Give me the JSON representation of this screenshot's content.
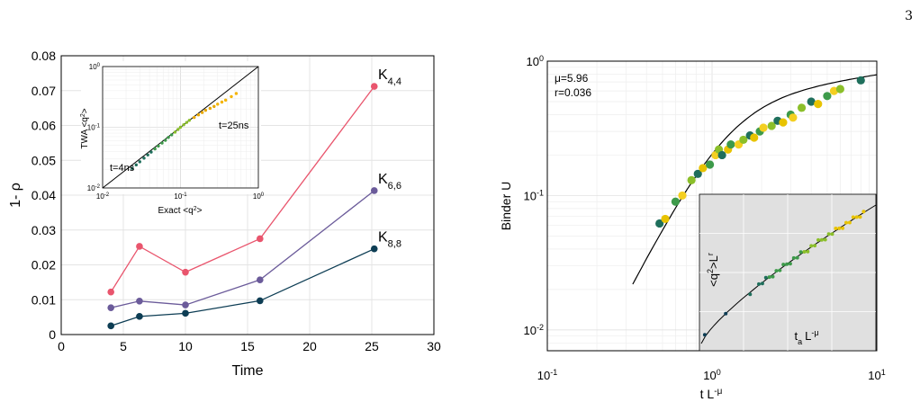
{
  "page_number": "3",
  "chart_data": [
    {
      "type": "line",
      "xlabel": "Time",
      "ylabel": "1- ρ",
      "xlim": [
        0,
        30
      ],
      "ylim": [
        0,
        0.08
      ],
      "xticks": [
        0,
        5,
        10,
        15,
        20,
        25,
        30
      ],
      "yticks": [
        0,
        0.01,
        0.02,
        0.03,
        0.04,
        0.05,
        0.06,
        0.07,
        0.08
      ],
      "x": [
        4,
        6.3,
        10,
        16,
        25.2
      ],
      "series": [
        {
          "name": "K",
          "sub": "4,4",
          "color": "#e9556d",
          "values": [
            0.0122,
            0.0253,
            0.0179,
            0.0275,
            0.0712
          ]
        },
        {
          "name": "K",
          "sub": "6,6",
          "color": "#6b5b9a",
          "values": [
            0.0077,
            0.0096,
            0.0085,
            0.0157,
            0.0413
          ]
        },
        {
          "name": "K",
          "sub": "8,8",
          "color": "#0d3d54",
          "values": [
            0.0025,
            0.0052,
            0.0061,
            0.0097,
            0.0246
          ]
        }
      ],
      "grid": true
    },
    {
      "type": "scatter",
      "xlabel": "Exact <q²>",
      "ylabel": "TWA <q²>",
      "scale": "log",
      "xlim": [
        0.01,
        1
      ],
      "ylim": [
        0.01,
        1
      ],
      "tick_labels": {
        "min": "10",
        "min_exp": "-2",
        "mid": "10",
        "mid_exp": "-1",
        "max": "10",
        "max_exp": "0"
      },
      "annotations": [
        "t=4ns",
        "t=25ns"
      ],
      "points": [
        [
          0.024,
          0.021
        ],
        [
          0.027,
          0.024
        ],
        [
          0.03,
          0.027
        ],
        [
          0.034,
          0.031
        ],
        [
          0.038,
          0.035
        ],
        [
          0.042,
          0.039
        ],
        [
          0.047,
          0.044
        ],
        [
          0.052,
          0.049
        ],
        [
          0.058,
          0.055
        ],
        [
          0.064,
          0.061
        ],
        [
          0.07,
          0.068
        ],
        [
          0.077,
          0.075
        ],
        [
          0.085,
          0.083
        ],
        [
          0.093,
          0.092
        ],
        [
          0.1,
          0.1
        ],
        [
          0.11,
          0.11
        ],
        [
          0.12,
          0.12
        ],
        [
          0.13,
          0.13
        ],
        [
          0.15,
          0.145
        ],
        [
          0.17,
          0.16
        ],
        [
          0.19,
          0.175
        ],
        [
          0.21,
          0.19
        ],
        [
          0.24,
          0.205
        ],
        [
          0.27,
          0.22
        ],
        [
          0.3,
          0.24
        ],
        [
          0.34,
          0.26
        ],
        [
          0.38,
          0.28
        ],
        [
          0.45,
          0.32
        ],
        [
          0.52,
          0.36
        ]
      ],
      "colors": [
        "#1f6f5c",
        "#3d9a4a",
        "#8bbf2a",
        "#e8a800",
        "#f4b400"
      ]
    },
    {
      "type": "scatter",
      "xlabel": "t L",
      "xlabel_sup": "-μ",
      "ylabel": "Binder U",
      "scale": "log",
      "xlim": [
        0.1,
        10
      ],
      "ylim": [
        0.007,
        1
      ],
      "xtick_labels": [
        {
          "base": "10",
          "exp": "-1"
        },
        {
          "base": "10",
          "exp": "0"
        },
        {
          "base": "10",
          "exp": "1"
        }
      ],
      "ytick_labels": [
        {
          "base": "10",
          "exp": "-2"
        },
        {
          "base": "10",
          "exp": "-1"
        },
        {
          "base": "10",
          "exp": "0"
        }
      ],
      "annotations": [
        "μ=5.96",
        "r=0.036"
      ],
      "points": [
        [
          0.48,
          0.062
        ],
        [
          0.52,
          0.067
        ],
        [
          0.6,
          0.09
        ],
        [
          0.66,
          0.1
        ],
        [
          0.75,
          0.13
        ],
        [
          0.82,
          0.145
        ],
        [
          0.88,
          0.16
        ],
        [
          0.97,
          0.17
        ],
        [
          1.05,
          0.2
        ],
        [
          1.1,
          0.22
        ],
        [
          1.15,
          0.2
        ],
        [
          1.25,
          0.22
        ],
        [
          1.3,
          0.24
        ],
        [
          1.45,
          0.24
        ],
        [
          1.55,
          0.26
        ],
        [
          1.7,
          0.28
        ],
        [
          1.8,
          0.27
        ],
        [
          1.95,
          0.3
        ],
        [
          2.05,
          0.32
        ],
        [
          2.3,
          0.33
        ],
        [
          2.5,
          0.36
        ],
        [
          2.7,
          0.35
        ],
        [
          3.0,
          0.4
        ],
        [
          3.1,
          0.38
        ],
        [
          3.5,
          0.45
        ],
        [
          4.0,
          0.5
        ],
        [
          4.4,
          0.48
        ],
        [
          5.0,
          0.55
        ],
        [
          5.5,
          0.6
        ],
        [
          6.0,
          0.62
        ],
        [
          8.0,
          0.72
        ]
      ],
      "colors": [
        "#1f6f5c",
        "#3d9a4a",
        "#8bbf2a",
        "#e8c300",
        "#f4cf20"
      ],
      "inset": {
        "xlabel": "t",
        "xlabel_sub": "a",
        "xlabel_tail": "L",
        "xlabel_sup": "-μ",
        "ylabel": "<q²>L",
        "ylabel_sup": "r"
      }
    }
  ]
}
